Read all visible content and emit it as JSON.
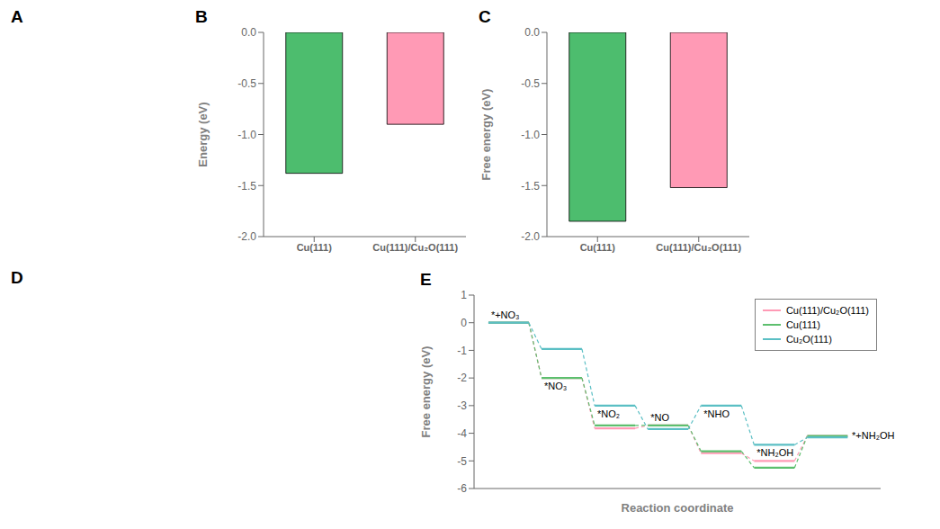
{
  "chart_data": [
    {
      "type": "blank",
      "title": "A"
    },
    {
      "type": "bar",
      "title": "B",
      "categories": [
        "Cu(111)",
        "Cu(111)/Cu₂O(111)"
      ],
      "values": [
        -1.38,
        -0.9
      ],
      "colors": [
        "#4dbd6e",
        "#ff9ab5"
      ],
      "ylabel": "Energy (eV)",
      "ylim": [
        -2.0,
        0.0
      ],
      "yticks": [
        {
          "value": 0,
          "label": "0.0"
        },
        -0.5,
        {
          "value": -1,
          "label": "-1.0"
        },
        -1.5,
        {
          "value": -2,
          "label": "-2.0"
        }
      ],
      "grid": false
    },
    {
      "type": "bar",
      "title": "C",
      "categories": [
        "Cu(111)",
        "Cu(111)/Cu₂O(111)"
      ],
      "values": [
        -1.85,
        -1.52
      ],
      "colors": [
        "#4dbd6e",
        "#ff9ab5"
      ],
      "ylabel": "Free energy (eV)",
      "ylim": [
        -2.0,
        0.0
      ],
      "yticks": [
        {
          "value": 0,
          "label": "0.0"
        },
        -0.5,
        {
          "value": -1,
          "label": "-1.0"
        },
        -1.5,
        {
          "value": -2,
          "label": "-2.0"
        }
      ],
      "grid": false
    },
    {
      "type": "blank",
      "title": "D"
    },
    {
      "type": "step",
      "title": "E",
      "xlabel": "Reaction coordinate",
      "ylabel": "Free energy (eV)",
      "x": [
        0,
        1,
        2,
        3,
        4,
        5,
        6
      ],
      "xlim": [
        -0.65,
        7.0
      ],
      "xticks": [],
      "ylim": [
        -6,
        1
      ],
      "yticks": [
        1,
        0,
        -1,
        -2,
        -3,
        -4,
        -5,
        -6
      ],
      "tick_labels": "y",
      "grid": false,
      "legend": "upper-right",
      "series": [
        {
          "name": "Cu(111)/Cu₂O(111)",
          "color": "#ff9ab5",
          "values": [
            0.0,
            -2.0,
            -3.82,
            -3.72,
            -4.72,
            -5.0,
            -4.1
          ]
        },
        {
          "name": "Cu(111)",
          "color": "#5dbf6e",
          "values": [
            0.0,
            -2.0,
            -3.72,
            -3.72,
            -4.65,
            -5.25,
            -4.1
          ]
        },
        {
          "name": "Cu₂O(111)",
          "color": "#5bbfc4",
          "values": [
            0.0,
            -0.95,
            -3.0,
            -3.85,
            -3.0,
            -4.42,
            -4.15
          ]
        }
      ],
      "annotations": [
        {
          "text": "*+NO₃",
          "x": 0,
          "y": 0.0,
          "position": "above"
        },
        {
          "text": "*NO₃",
          "x": 1,
          "y": -2.0,
          "position": "below"
        },
        {
          "text": "*NO₂",
          "x": 2,
          "y": -3.0,
          "position": "below"
        },
        {
          "text": "*NO",
          "x": 3,
          "y": -3.72,
          "position": "above"
        },
        {
          "text": "*NHO",
          "x": 4,
          "y": -3.0,
          "position": "below"
        },
        {
          "text": "*NH₂OH",
          "x": 5,
          "y": -5.0,
          "position": "above"
        },
        {
          "text": "*+NH₂OH",
          "x": 6,
          "y": -4.1,
          "position": "right"
        }
      ]
    }
  ]
}
